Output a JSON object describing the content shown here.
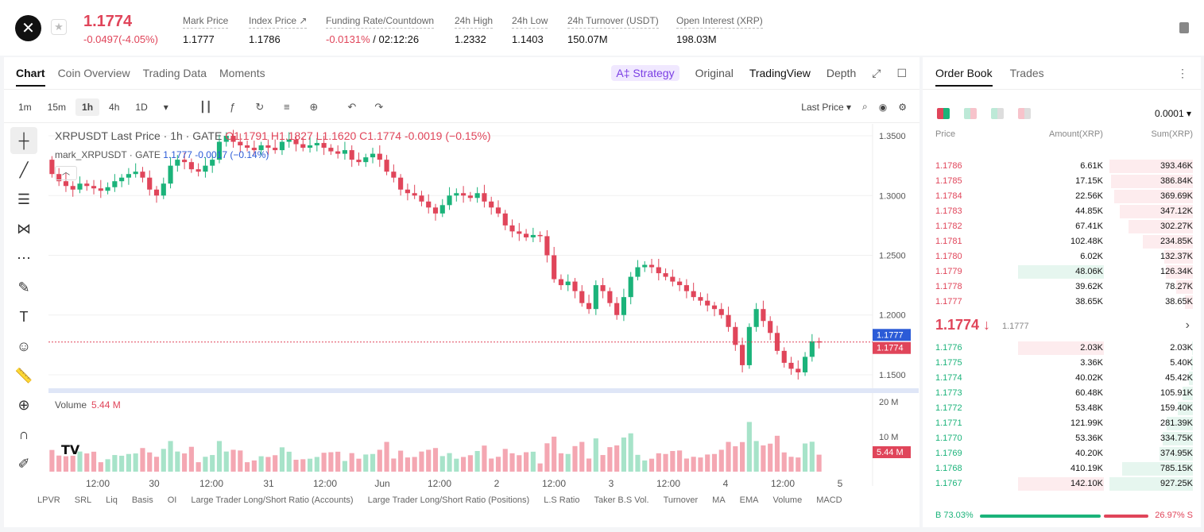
{
  "header": {
    "logo_glyph": "✕",
    "last_price": "1.1774",
    "change": "-0.0497(-4.05%)",
    "stats": [
      {
        "label": "Mark Price",
        "value": "1.1777",
        "red": false
      },
      {
        "label": "Index Price ↗",
        "value": "1.1786",
        "red": false
      },
      {
        "label": "Funding Rate/Countdown",
        "value": "-0.0131%",
        "value2": " / 02:12:26",
        "red": true
      },
      {
        "label": "24h High",
        "value": "1.2332",
        "red": false
      },
      {
        "label": "24h Low",
        "value": "1.1403",
        "red": false
      },
      {
        "label": "24h Turnover (USDT)",
        "value": "150.07M",
        "red": false
      },
      {
        "label": "Open Interest (XRP)",
        "value": "198.03M",
        "red": false
      }
    ]
  },
  "chart_panel": {
    "tabs": [
      "Chart",
      "Coin Overview",
      "Trading Data",
      "Moments"
    ],
    "right_tabs": {
      "strategy": "A‡ Strategy",
      "original": "Original",
      "tradingview": "TradingView",
      "depth": "Depth"
    },
    "timeframes": [
      "1m",
      "15m",
      "1h",
      "4h",
      "1D"
    ],
    "active_timeframe": "1h",
    "price_type": "Last Price ▾",
    "legend": {
      "symbol": "XRPUSDT Last Price · 1h · GATE",
      "o": "O1.1791",
      "h": "H1.1827",
      "l": "L1.1620",
      "c": "C1.1774",
      "chg": "-0.0019 (−0.15%)",
      "mark_label": "mark_XRPUSDT · GATE",
      "mark_val": "1.1777 -0.0017 (−0.14%)"
    },
    "volume_label": "Volume",
    "volume_value": "5.44 M",
    "bottom_indicators": [
      "LPVR",
      "SRL",
      "Liq",
      "Basis",
      "OI",
      "Large Trader Long/Short Ratio (Accounts)",
      "Large Trader Long/Short Ratio (Positions)",
      "L.S Ratio",
      "Taker B.S Vol.",
      "Turnover",
      "MA",
      "EMA",
      "Volume",
      "MACD"
    ]
  },
  "chart_data": {
    "type": "candlestick",
    "y_ticks": [
      "1.3500",
      "1.3000",
      "1.2500",
      "1.2000",
      "1.1500"
    ],
    "ylim": [
      1.14,
      1.36
    ],
    "x_ticks": [
      "12:00",
      "30",
      "12:00",
      "31",
      "12:00",
      "Jun",
      "12:00",
      "2",
      "12:00",
      "3",
      "12:00",
      "4",
      "12:00",
      "5"
    ],
    "last_price_tag": "1.1774",
    "mark_price_tag": "1.1777",
    "volume_ticks": [
      "20 M",
      "10 M"
    ],
    "volume_tag": "5.44 M",
    "close_series": [
      1.318,
      1.312,
      1.308,
      1.305,
      1.31,
      1.308,
      1.306,
      1.304,
      1.307,
      1.312,
      1.315,
      1.318,
      1.32,
      1.315,
      1.305,
      1.3,
      1.31,
      1.325,
      1.33,
      1.328,
      1.322,
      1.32,
      1.325,
      1.33,
      1.345,
      1.35,
      1.345,
      1.342,
      1.34,
      1.338,
      1.342,
      1.34,
      1.338,
      1.345,
      1.347,
      1.343,
      1.34,
      1.342,
      1.344,
      1.34,
      1.337,
      1.335,
      1.338,
      1.33,
      1.328,
      1.332,
      1.335,
      1.33,
      1.32,
      1.315,
      1.305,
      1.302,
      1.3,
      1.295,
      1.29,
      1.285,
      1.292,
      1.3,
      1.302,
      1.3,
      1.298,
      1.302,
      1.295,
      1.29,
      1.285,
      1.275,
      1.27,
      1.268,
      1.265,
      1.267,
      1.266,
      1.25,
      1.23,
      1.225,
      1.228,
      1.22,
      1.21,
      1.205,
      1.225,
      1.22,
      1.21,
      1.2,
      1.215,
      1.232,
      1.24,
      1.242,
      1.24,
      1.235,
      1.232,
      1.228,
      1.225,
      1.22,
      1.215,
      1.212,
      1.208,
      1.205,
      1.2,
      1.19,
      1.175,
      1.158,
      1.19,
      1.205,
      1.195,
      1.185,
      1.17,
      1.16,
      1.155,
      1.152,
      1.165,
      1.178,
      1.177
    ]
  },
  "order_book": {
    "tabs": [
      "Order Book",
      "Trades"
    ],
    "more": "⋮",
    "precision": "0.0001 ▾",
    "headers": {
      "price": "Price",
      "amount": "Amount(XRP)",
      "sum": "Sum(XRP)"
    },
    "asks": [
      {
        "price": "1.1786",
        "amount": "6.61K",
        "sum": "393.46K",
        "depth": 1.0
      },
      {
        "price": "1.1785",
        "amount": "17.15K",
        "sum": "386.84K",
        "depth": 0.98
      },
      {
        "price": "1.1784",
        "amount": "22.56K",
        "sum": "369.69K",
        "depth": 0.94
      },
      {
        "price": "1.1783",
        "amount": "44.85K",
        "sum": "347.12K",
        "depth": 0.88
      },
      {
        "price": "1.1782",
        "amount": "67.41K",
        "sum": "302.27K",
        "depth": 0.77
      },
      {
        "price": "1.1781",
        "amount": "102.48K",
        "sum": "234.85K",
        "depth": 0.6
      },
      {
        "price": "1.1780",
        "amount": "6.02K",
        "sum": "132.37K",
        "depth": 0.34
      },
      {
        "price": "1.1779",
        "amount": "48.06K",
        "sum": "126.34K",
        "depth": 0.32,
        "highlight": true
      },
      {
        "price": "1.1778",
        "amount": "39.62K",
        "sum": "78.27K",
        "depth": 0.2
      },
      {
        "price": "1.1777",
        "amount": "38.65K",
        "sum": "38.65K",
        "depth": 0.1
      }
    ],
    "mid_price": "1.1774 ↓",
    "mid_mark": "1.1777",
    "bids": [
      {
        "price": "1.1776",
        "amount": "2.03K",
        "sum": "2.03K",
        "depth": 0.01,
        "highlight": true
      },
      {
        "price": "1.1775",
        "amount": "3.36K",
        "sum": "5.40K",
        "depth": 0.02
      },
      {
        "price": "1.1774",
        "amount": "40.02K",
        "sum": "45.42K",
        "depth": 0.05
      },
      {
        "price": "1.1773",
        "amount": "60.48K",
        "sum": "105.91K",
        "depth": 0.12
      },
      {
        "price": "1.1772",
        "amount": "53.48K",
        "sum": "159.40K",
        "depth": 0.18
      },
      {
        "price": "1.1771",
        "amount": "121.99K",
        "sum": "281.39K",
        "depth": 0.31
      },
      {
        "price": "1.1770",
        "amount": "53.36K",
        "sum": "334.75K",
        "depth": 0.36
      },
      {
        "price": "1.1769",
        "amount": "40.20K",
        "sum": "374.95K",
        "depth": 0.4
      },
      {
        "price": "1.1768",
        "amount": "410.19K",
        "sum": "785.15K",
        "depth": 0.85
      },
      {
        "price": "1.1767",
        "amount": "142.10K",
        "sum": "927.25K",
        "depth": 1.0,
        "highlight": true
      }
    ],
    "buy_ratio": "B 73.03%",
    "sell_ratio": "26.97% S"
  }
}
